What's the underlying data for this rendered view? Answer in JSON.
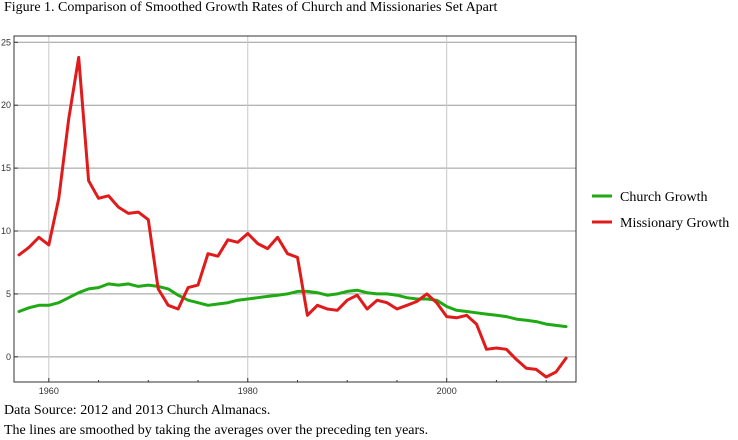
{
  "figure_title": "Figure 1.  Comparison of Smoothed Growth Rates of Church and Missionaries Set Apart",
  "footnotes": [
    "Data Source: 2012 and 2013 Church Almanacs.",
    "The lines are smoothed by taking the averages over the preceding ten years."
  ],
  "chart_data": {
    "type": "line",
    "title": "Figure 1.  Comparison of Smoothed Growth Rates of Church and Missionaries Set Apart",
    "xlabel": "",
    "ylabel": "",
    "xlim": [
      1956.5,
      2013
    ],
    "ylim": [
      -2,
      25.5
    ],
    "x_ticks": [
      1960,
      1980,
      2000
    ],
    "y_ticks": [
      0,
      5,
      10,
      15,
      20,
      25
    ],
    "grid": true,
    "legend_position": "right",
    "series": [
      {
        "name": "Church Growth",
        "color": "#1faa14",
        "x": [
          1957,
          1958,
          1959,
          1960,
          1961,
          1962,
          1963,
          1964,
          1965,
          1966,
          1967,
          1968,
          1969,
          1970,
          1971,
          1972,
          1973,
          1974,
          1975,
          1976,
          1977,
          1978,
          1979,
          1980,
          1981,
          1982,
          1983,
          1984,
          1985,
          1986,
          1987,
          1988,
          1989,
          1990,
          1991,
          1992,
          1993,
          1994,
          1995,
          1996,
          1997,
          1998,
          1999,
          2000,
          2001,
          2002,
          2003,
          2004,
          2005,
          2006,
          2007,
          2008,
          2009,
          2010,
          2011,
          2012
        ],
        "values": [
          3.6,
          3.9,
          4.1,
          4.1,
          4.3,
          4.7,
          5.1,
          5.4,
          5.5,
          5.8,
          5.7,
          5.8,
          5.6,
          5.7,
          5.6,
          5.4,
          4.9,
          4.5,
          4.3,
          4.1,
          4.2,
          4.3,
          4.5,
          4.6,
          4.7,
          4.8,
          4.9,
          5.0,
          5.2,
          5.2,
          5.1,
          4.9,
          5.0,
          5.2,
          5.3,
          5.1,
          5.0,
          5.0,
          4.9,
          4.7,
          4.6,
          4.6,
          4.5,
          4.0,
          3.7,
          3.6,
          3.5,
          3.4,
          3.3,
          3.2,
          3.0,
          2.9,
          2.8,
          2.6,
          2.5,
          2.4
        ]
      },
      {
        "name": "Missionary Growth",
        "color": "#e01b1b",
        "x": [
          1957,
          1958,
          1959,
          1960,
          1961,
          1962,
          1963,
          1964,
          1965,
          1966,
          1967,
          1968,
          1969,
          1970,
          1971,
          1972,
          1973,
          1974,
          1975,
          1976,
          1977,
          1978,
          1979,
          1980,
          1981,
          1982,
          1983,
          1984,
          1985,
          1986,
          1987,
          1988,
          1989,
          1990,
          1991,
          1992,
          1993,
          1994,
          1995,
          1996,
          1997,
          1998,
          1999,
          2000,
          2001,
          2002,
          2003,
          2004,
          2005,
          2006,
          2007,
          2008,
          2009,
          2010,
          2011,
          2012
        ],
        "values": [
          8.1,
          8.7,
          9.5,
          8.9,
          12.6,
          18.9,
          23.8,
          14.0,
          12.6,
          12.8,
          11.9,
          11.4,
          11.5,
          10.9,
          5.4,
          4.1,
          3.8,
          5.5,
          5.7,
          8.2,
          8.0,
          9.3,
          9.1,
          9.8,
          9.0,
          8.6,
          9.5,
          8.2,
          7.9,
          3.3,
          4.1,
          3.8,
          3.7,
          4.5,
          4.9,
          3.8,
          4.5,
          4.3,
          3.8,
          4.1,
          4.4,
          5.0,
          4.3,
          3.2,
          3.1,
          3.3,
          2.6,
          0.6,
          0.7,
          0.6,
          -0.2,
          -0.9,
          -1.0,
          -1.6,
          -1.2,
          -0.1
        ]
      }
    ]
  }
}
